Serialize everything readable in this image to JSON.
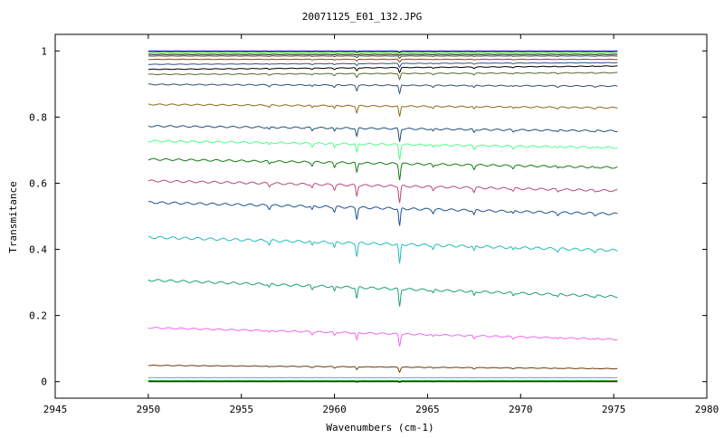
{
  "chart_data": {
    "type": "line",
    "title": "20071125_E01_132.JPG",
    "xlabel": "Wavenumbers (cm-1)",
    "ylabel": "Transmitance",
    "xlim": [
      2945,
      2980
    ],
    "ylim": [
      -0.05,
      1.05
    ],
    "x_ticks": [
      2945,
      2950,
      2955,
      2960,
      2965,
      2970,
      2975,
      2980
    ],
    "x_tick_labels": [
      "2945",
      "2950",
      "2955",
      "2960",
      "2965",
      "2970",
      "2975",
      "2980"
    ],
    "y_ticks": [
      0,
      0.2,
      0.4,
      0.6,
      0.8,
      1
    ],
    "y_tick_labels": [
      "0",
      "0.2",
      "0.4",
      "0.6",
      "0.8",
      "1"
    ],
    "grid": false,
    "legend": "none",
    "x_range": [
      2950,
      2975.2
    ],
    "absorption_lines": [
      {
        "x": 2956.5,
        "rel_depth": 0.3
      },
      {
        "x": 2958.8,
        "rel_depth": 0.35
      },
      {
        "x": 2960.0,
        "rel_depth": 0.45
      },
      {
        "x": 2961.2,
        "rel_depth": 1.0
      },
      {
        "x": 2963.5,
        "rel_depth": 1.6
      },
      {
        "x": 2965.3,
        "rel_depth": 0.3
      },
      {
        "x": 2967.5,
        "rel_depth": 0.4
      },
      {
        "x": 2969.6,
        "rel_depth": 0.25
      },
      {
        "x": 2972.0,
        "rel_depth": 0.2
      },
      {
        "x": 2974.0,
        "rel_depth": 0.15
      }
    ],
    "series": [
      {
        "color": "#0000ff",
        "y_start": 1.0,
        "y_end": 1.0,
        "scale": 0.05
      },
      {
        "color": "#00aa00",
        "y_start": 0.997,
        "y_end": 0.997,
        "scale": 0.05
      },
      {
        "color": "#000000",
        "y_start": 0.99,
        "y_end": 0.99,
        "scale": 0.05
      },
      {
        "color": "#444444",
        "y_start": 0.985,
        "y_end": 0.985,
        "scale": 0.1
      },
      {
        "color": "#8b4513",
        "y_start": 0.975,
        "y_end": 0.975,
        "scale": 0.12
      },
      {
        "color": "#2e5090",
        "y_start": 0.96,
        "y_end": 0.965,
        "scale": 0.15
      },
      {
        "color": "#000000",
        "y_start": 0.945,
        "y_end": 0.955,
        "scale": 0.2
      },
      {
        "color": "#556b2f",
        "y_start": 0.93,
        "y_end": 0.935,
        "scale": 0.25
      },
      {
        "color": "#2f4f6f",
        "y_start": 0.9,
        "y_end": 0.895,
        "scale": 0.35
      },
      {
        "color": "#8b6914",
        "y_start": 0.84,
        "y_end": 0.83,
        "scale": 0.45
      },
      {
        "color": "#1f4e79",
        "y_start": 0.775,
        "y_end": 0.76,
        "scale": 0.55
      },
      {
        "color": "#4dff88",
        "y_start": 0.73,
        "y_end": 0.71,
        "scale": 0.6
      },
      {
        "color": "#137a13",
        "y_start": 0.675,
        "y_end": 0.65,
        "scale": 0.65
      },
      {
        "color": "#b5487a",
        "y_start": 0.61,
        "y_end": 0.58,
        "scale": 0.7
      },
      {
        "color": "#1f5090",
        "y_start": 0.545,
        "y_end": 0.51,
        "scale": 0.75
      },
      {
        "color": "#22bbbb",
        "y_start": 0.44,
        "y_end": 0.4,
        "scale": 0.85
      },
      {
        "color": "#1aa070",
        "y_start": 0.31,
        "y_end": 0.26,
        "scale": 0.75
      },
      {
        "color": "#ee66ee",
        "y_start": 0.165,
        "y_end": 0.13,
        "scale": 0.5
      },
      {
        "color": "#6b3a10",
        "y_start": 0.05,
        "y_end": 0.04,
        "scale": 0.2
      },
      {
        "color": "#8888ff",
        "y_start": 0.012,
        "y_end": 0.012,
        "scale": 0.02
      },
      {
        "color": "#009900",
        "y_start": 0.003,
        "y_end": 0.003,
        "scale": 0.02
      },
      {
        "color": "#000000",
        "y_start": 0.0,
        "y_end": 0.0,
        "scale": 0.02
      }
    ]
  }
}
